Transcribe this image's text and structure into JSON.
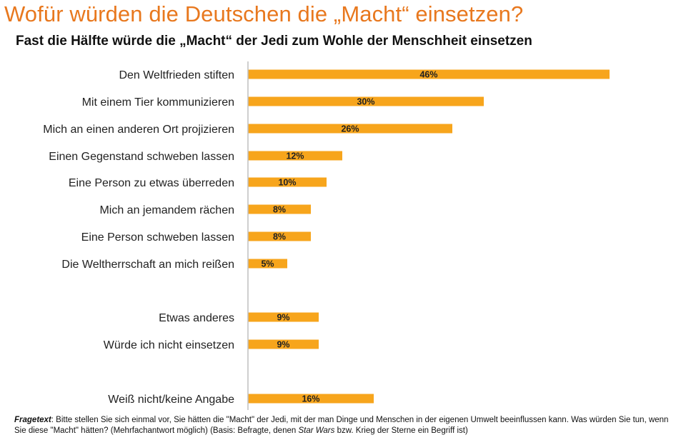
{
  "header": {
    "title": "Wofür würden die Deutschen die „Macht“ einsetzen?",
    "subtitle": "Fast die Hälfte würde die „Macht“ der Jedi zum Wohle der Menschheit einsetzen"
  },
  "chart_data": {
    "type": "bar",
    "orientation": "horizontal",
    "categories": [
      "Den Weltfrieden stiften",
      "Mit einem Tier kommunizieren",
      "Mich an einen anderen Ort projizieren",
      "Einen Gegenstand schweben lassen",
      "Eine Person zu etwas überreden",
      "Mich an jemandem rächen",
      "Eine Person schweben lassen",
      "Die Weltherrschaft an mich reißen",
      "Etwas anderes",
      "Würde ich nicht einsetzen",
      "Weiß nicht/keine Angabe"
    ],
    "values": [
      46,
      30,
      26,
      12,
      10,
      8,
      8,
      5,
      9,
      9,
      16
    ],
    "value_labels": [
      "46%",
      "30%",
      "26%",
      "12%",
      "10%",
      "8%",
      "8%",
      "5%",
      "9%",
      "9%",
      "16%"
    ],
    "unit": "%",
    "bar_color": "#f7a51c",
    "axis_line_color": "#bfbfbf",
    "grid": false
  },
  "footnote": {
    "lead": "Fragetext",
    "text_1": ": Bitte stellen Sie sich einmal vor, Sie hätten die \"Macht\" der Jedi, mit der man Dinge und Menschen in der eigenen Umwelt beeinflussen kann. Was würden Sie tun, wenn Sie diese \"Macht\" hätten? (Mehrfachantwort möglich) (Basis: Befragte, denen ",
    "title_italic": "Star Wars",
    "text_2": " bzw. Krieg der Sterne ein Begriff ist)"
  },
  "colors": {
    "title": "#e8781e",
    "bar": "#f7a51c"
  }
}
